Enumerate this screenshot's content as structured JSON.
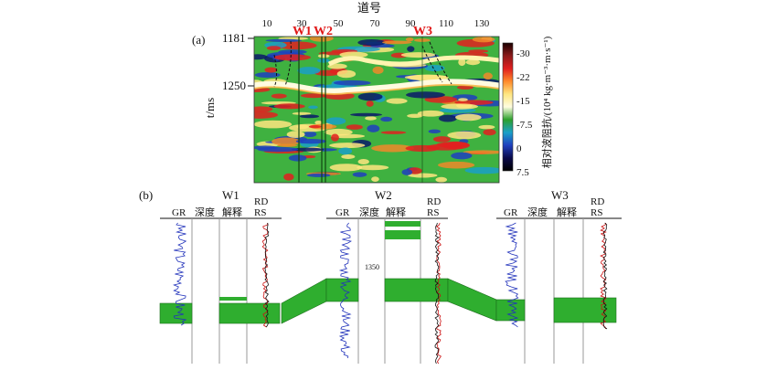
{
  "panel_a": {
    "label": "(a)",
    "x_axis_title": "道号",
    "trace_ticks": [
      "10",
      "30",
      "50",
      "70",
      "90",
      "110",
      "130"
    ],
    "y_axis_title": "t/ms",
    "y_ticks": [
      "1181",
      "1250"
    ],
    "wells": [
      "W1",
      "W2",
      "W3"
    ],
    "colorbar": {
      "title": "相对波阻抗/(10⁴ kg·m⁻³·m·s⁻¹)",
      "ticks": [
        "-30",
        "-22",
        "-15",
        "-7.5",
        "0",
        "7.5"
      ],
      "colors": [
        "#1a0000",
        "#8b1a1a",
        "#e01e1e",
        "#ff8a2a",
        "#ffe680",
        "#fffde0",
        "#2ca02c",
        "#1aa0c8",
        "#1f3fbf",
        "#0a0a4a",
        "#000000"
      ]
    }
  },
  "panel_b": {
    "label": "(b)",
    "wells": [
      {
        "name": "W1",
        "tracks": [
          "GR",
          "深度",
          "解释",
          "RD\nRS"
        ]
      },
      {
        "name": "W2",
        "tracks": [
          "GR",
          "深度",
          "解释",
          "RD\nRS"
        ]
      },
      {
        "name": "W3",
        "tracks": [
          "GR",
          "深度",
          "解释",
          "RD\nRS"
        ]
      }
    ],
    "depth_tick": "1350",
    "reservoir_color": "#2fae2f"
  }
}
